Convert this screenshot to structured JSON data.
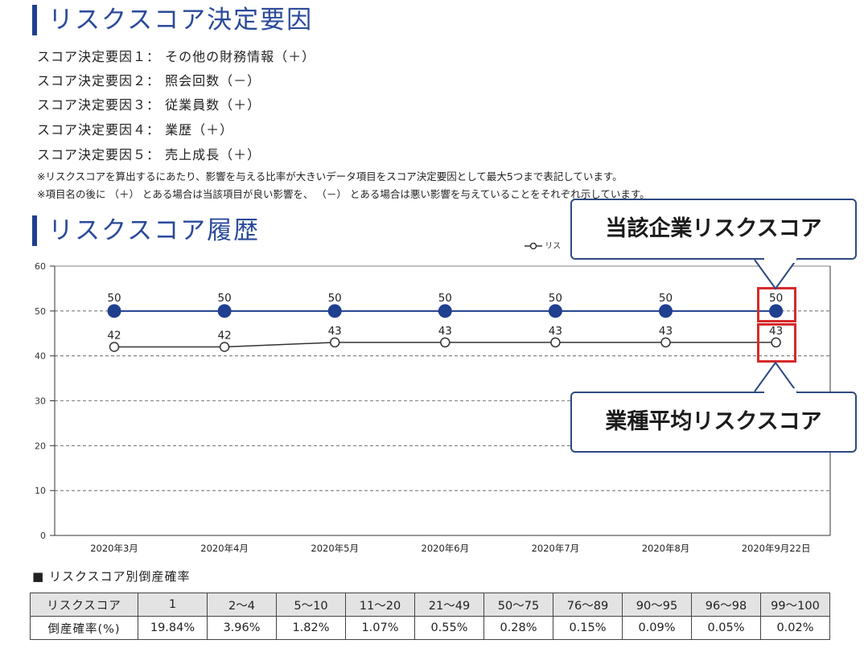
{
  "score_factors": {
    "title": "リスクスコア決定要因",
    "items": [
      "スコア決定要因１： その他の財務情報（＋）",
      "スコア決定要因２： 照会回数（－）",
      "スコア決定要因３： 従業員数（＋）",
      "スコア決定要因４： 業歴（＋）",
      "スコア決定要因５： 売上成長（＋）"
    ],
    "notes": [
      "※リスクスコアを算出するにあたり、影響を与える比率が大きいデータ項目をスコア決定要因として最大5つまで表記しています。",
      "※項目名の後に （＋） とある場合は当該項目が良い影響を、 （－） とある場合は悪い影響を与えていることをそれぞれ示しています。"
    ]
  },
  "history": {
    "title": "リスクスコア履歴",
    "legend_label": "リス",
    "callout_company": "当該企業リスクスコア",
    "callout_industry": "業種平均リスクスコア"
  },
  "chart_data": {
    "type": "line",
    "categories": [
      "2020年3月",
      "2020年4月",
      "2020年5月",
      "2020年6月",
      "2020年7月",
      "2020年8月",
      "2020年9月22日"
    ],
    "series": [
      {
        "name": "当該企業リスクスコア",
        "values": [
          50,
          50,
          50,
          50,
          50,
          50,
          50
        ],
        "color": "#1f3f8f"
      },
      {
        "name": "業種平均リスクスコア",
        "values": [
          42,
          42,
          43,
          43,
          43,
          43,
          43
        ],
        "color": "#333333"
      }
    ],
    "ylim": [
      0,
      60
    ],
    "yticks": [
      0,
      10,
      20,
      30,
      40,
      50,
      60
    ],
    "grid": true,
    "xlabel": "",
    "ylabel": ""
  },
  "probability_table": {
    "caption": "■ リスクスコア別倒産確率",
    "header_label": "リスクスコア",
    "row_label": "倒産確率(%)",
    "ranges": [
      "1",
      "2～4",
      "5～10",
      "11～20",
      "21～49",
      "50～75",
      "76～89",
      "90～95",
      "96～98",
      "99～100"
    ],
    "rates": [
      "19.84%",
      "3.96%",
      "1.82%",
      "1.07%",
      "0.55%",
      "0.28%",
      "0.15%",
      "0.09%",
      "0.05%",
      "0.02%"
    ]
  },
  "colors": {
    "accent": "#1f3f8f",
    "highlight": "#d62a2a",
    "callout_border": "#2e4a80"
  }
}
